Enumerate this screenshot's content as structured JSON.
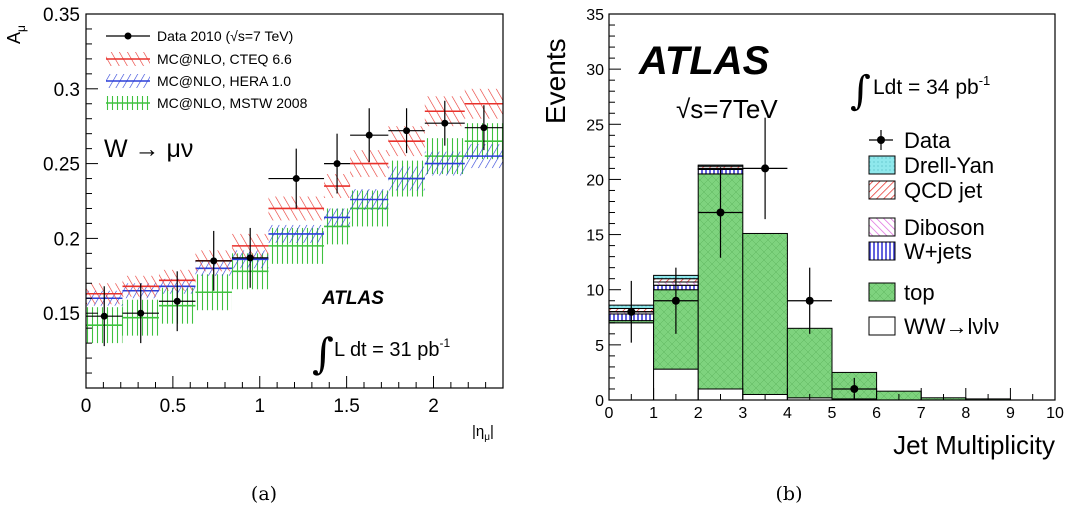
{
  "chart_data": [
    {
      "type": "bar",
      "panel_label": "(a)",
      "ylabel": "A_μ",
      "xlabel": "|η_μ|",
      "xlim": [
        0,
        2.4
      ],
      "ylim": [
        0.1,
        0.35
      ],
      "x_ticks": [
        "0",
        "0.5",
        "1",
        "1.5",
        "2"
      ],
      "y_ticks": [
        "0.15",
        "0.2",
        "0.25",
        "0.3",
        "0.35"
      ],
      "bin_edges": [
        0,
        0.21,
        0.42,
        0.63,
        0.84,
        1.05,
        1.37,
        1.52,
        1.74,
        1.95,
        2.18,
        2.4
      ],
      "legend_placement": "top-left",
      "annotations": {
        "process": "W → μν",
        "experiment": "ATLAS",
        "luminosity": "L dt = 31 pb"
      },
      "series": [
        {
          "name": "Data 2010 (√s=7 TeV)",
          "kind": "points",
          "color": "#000000",
          "values": [
            0.148,
            0.15,
            0.158,
            0.185,
            0.187,
            0.24,
            0.25,
            0.269,
            0.272,
            0.277,
            0.274
          ],
          "errors": [
            0.02,
            0.02,
            0.02,
            0.02,
            0.02,
            0.02,
            0.02,
            0.018,
            0.015,
            0.015,
            0.015
          ]
        },
        {
          "name": "MC@NLO, CTEQ 6.6",
          "kind": "band",
          "color": "#e8312b",
          "values": [
            0.163,
            0.168,
            0.172,
            0.185,
            0.195,
            0.22,
            0.235,
            0.25,
            0.265,
            0.285,
            0.29
          ],
          "errors": [
            0.007,
            0.007,
            0.007,
            0.007,
            0.008,
            0.008,
            0.008,
            0.009,
            0.01,
            0.01,
            0.01
          ]
        },
        {
          "name": "MC@NLO, HERA 1.0",
          "kind": "band",
          "color": "#2b3fd8",
          "values": [
            0.16,
            0.165,
            0.168,
            0.18,
            0.186,
            0.203,
            0.214,
            0.226,
            0.24,
            0.25,
            0.255
          ],
          "errors": [
            0.005,
            0.005,
            0.005,
            0.005,
            0.006,
            0.006,
            0.006,
            0.007,
            0.008,
            0.008,
            0.008
          ]
        },
        {
          "name": "MC@NLO, MSTW 2008",
          "kind": "band",
          "color": "#3fc23f",
          "values": [
            0.142,
            0.147,
            0.155,
            0.164,
            0.178,
            0.195,
            0.208,
            0.22,
            0.24,
            0.255,
            0.265
          ],
          "errors": [
            0.012,
            0.012,
            0.012,
            0.012,
            0.012,
            0.012,
            0.012,
            0.012,
            0.012,
            0.012,
            0.012
          ]
        }
      ]
    },
    {
      "type": "bar",
      "stacked": true,
      "panel_label": "(b)",
      "ylabel": "Events",
      "xlabel": "Jet Multiplicity",
      "xlim": [
        0,
        10
      ],
      "ylim": [
        0,
        35
      ],
      "x_ticks": [
        "0",
        "1",
        "2",
        "3",
        "4",
        "5",
        "6",
        "7",
        "8",
        "9",
        "10"
      ],
      "y_ticks": [
        "0",
        "5",
        "10",
        "15",
        "20",
        "25",
        "30",
        "35"
      ],
      "categories": [
        "0",
        "1",
        "2",
        "3",
        "4",
        "5",
        "6",
        "7",
        "8",
        "9"
      ],
      "legend_placement": "right",
      "annotations": {
        "experiment": "ATLAS",
        "energy": "√s=7TeV",
        "luminosity": "Ldt = 34 pb"
      },
      "data": {
        "name": "Data",
        "values": [
          8,
          9,
          17,
          21,
          9,
          1
        ],
        "x": [
          0.5,
          1.5,
          2.5,
          3.5,
          4.5,
          5.5
        ],
        "errors": [
          2.8,
          3.0,
          4.1,
          4.6,
          3.0,
          1.0
        ]
      },
      "series": [
        {
          "name": "WW→lνlν",
          "color": "#ffffff",
          "values": [
            7.0,
            2.8,
            1.0,
            0.5,
            0.2,
            0.1,
            0,
            0,
            0,
            0
          ]
        },
        {
          "name": "top",
          "color": "#7ed37e",
          "values": [
            0.2,
            7.2,
            19.5,
            14.6,
            6.3,
            2.4,
            0.8,
            0.2,
            0.1,
            0
          ]
        },
        {
          "name": "W+jets",
          "color": "#3b3bd6",
          "values": [
            0.6,
            0.4,
            0.4,
            0,
            0,
            0,
            0,
            0,
            0,
            0
          ]
        },
        {
          "name": "Diboson",
          "color": "#e070e0",
          "values": [
            0.2,
            0.3,
            0.1,
            0,
            0,
            0,
            0,
            0,
            0,
            0
          ]
        },
        {
          "name": "QCD jet",
          "color": "#e8312b",
          "values": [
            0.3,
            0.3,
            0.2,
            0,
            0,
            0,
            0,
            0,
            0,
            0
          ]
        },
        {
          "name": "Drell-Yan",
          "color": "#8fe8ec",
          "values": [
            0.3,
            0.3,
            0.1,
            0,
            0,
            0,
            0,
            0,
            0,
            0
          ]
        }
      ]
    }
  ],
  "text": {
    "a_ylabel_main": "A",
    "a_ylabel_sub": "μ",
    "a_xlabel_main": "|η",
    "a_xlabel_sub": "μ",
    "a_xlabel_end": "|",
    "a_process": "W → μν",
    "a_atlas": "ATLAS",
    "a_integral": "∫",
    "a_lumi": "L dt = 31 pb",
    "a_lumi_exp": "-1",
    "a_panel": "(a)",
    "b_ylabel": "Events",
    "b_xlabel": "Jet Multiplicity",
    "b_atlas": "ATLAS",
    "b_energy": "√s=7TeV",
    "b_integral": "∫",
    "b_lumi": "Ldt = 34 pb",
    "b_lumi_exp": "-1",
    "b_panel": "(b)"
  }
}
